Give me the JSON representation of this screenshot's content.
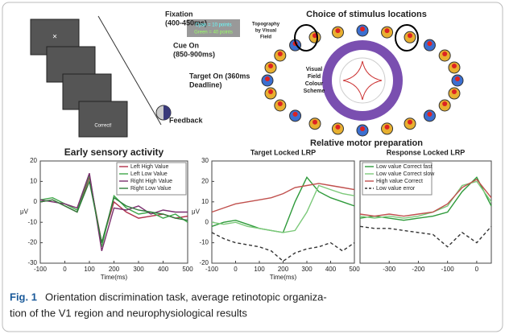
{
  "task": {
    "steps": [
      [
        "Fixation",
        "(400-450ms)"
      ],
      [
        "Cue On",
        "(850-900ms)"
      ],
      [
        "Target On (360ms",
        "Deadline)"
      ],
      [
        "Feedback"
      ]
    ],
    "key": [
      "Cyan = 10 points",
      "Green = 40 points"
    ],
    "screen_text": "Correct!"
  },
  "topography": {
    "title": "Choice of stimulus locations",
    "field_label": [
      "Topography",
      "by Visual",
      "Field"
    ],
    "scheme_label": [
      "Visual",
      "Field",
      "Colour",
      "Scheme"
    ],
    "subtitle": "Relative motor preparation"
  },
  "chart_data": [
    {
      "type": "line",
      "title": "Early sensory activity",
      "xlabel": "Time(ms)",
      "ylabel": "μV",
      "legend": "upper right",
      "x": [
        -100,
        -50,
        0,
        50,
        100,
        150,
        200,
        250,
        300,
        350,
        400,
        450,
        500
      ],
      "xlim": [
        -100,
        500
      ],
      "xticks": [
        -100,
        0,
        100,
        200,
        300,
        400,
        500
      ],
      "ylim": [
        -30,
        20
      ],
      "yticks": [
        -30,
        -20,
        -10,
        0,
        10,
        20
      ],
      "series": [
        {
          "name": "Left High Value",
          "color": "#b0304a",
          "values": [
            0,
            1,
            -2,
            -5,
            12,
            -20,
            0,
            -5,
            -8,
            -7,
            -6,
            -8,
            -7
          ]
        },
        {
          "name": "Left Low Value",
          "color": "#3fa84a",
          "values": [
            1,
            2,
            -1,
            -4,
            13,
            -22,
            3,
            -3,
            -6,
            -5,
            -8,
            -6,
            -10
          ]
        },
        {
          "name": "Right High Value",
          "color": "#7a2f6e",
          "values": [
            1,
            0,
            -1,
            -3,
            14,
            -24,
            -3,
            -4,
            -2,
            -6,
            -4,
            -5,
            -5
          ]
        },
        {
          "name": "Right Low Value",
          "color": "#2e7d3a",
          "values": [
            0,
            1,
            -2,
            -5,
            10,
            -20,
            2,
            -2,
            -4,
            -5,
            -6,
            -8,
            -9
          ]
        }
      ]
    },
    {
      "type": "line",
      "title": "Target Locked LRP",
      "xlabel": "Time(ms)",
      "ylabel": "μV",
      "x": [
        -100,
        -50,
        0,
        50,
        100,
        150,
        200,
        250,
        300,
        350,
        400,
        450,
        500
      ],
      "xlim": [
        -100,
        500
      ],
      "xticks": [
        -100,
        0,
        100,
        200,
        300,
        400,
        500
      ],
      "ylim": [
        -20,
        30
      ],
      "yticks": [
        -20,
        -10,
        0,
        10,
        20,
        30
      ],
      "series": [
        {
          "color": "#2e9a3a",
          "values": [
            -2,
            0,
            1,
            -1,
            -3,
            -4,
            -5,
            10,
            22,
            15,
            12,
            10,
            8
          ]
        },
        {
          "color": "#7cc97a",
          "values": [
            0,
            -1,
            0,
            -2,
            -3,
            -4,
            -5,
            -4,
            5,
            18,
            16,
            14,
            13
          ]
        },
        {
          "color": "#c0504d",
          "values": [
            5,
            7,
            9,
            10,
            11,
            12,
            14,
            17,
            18,
            19,
            18,
            17,
            16
          ]
        },
        {
          "color": "#333333",
          "dashed": true,
          "values": [
            -5,
            -8,
            -10,
            -11,
            -12,
            -14,
            -19,
            -15,
            -13,
            -12,
            -10,
            -14,
            -10
          ]
        }
      ]
    },
    {
      "type": "line",
      "title": "Response Locked LRP",
      "legend": "upper left",
      "x": [
        -400,
        -350,
        -300,
        -250,
        -200,
        -150,
        -100,
        -50,
        0,
        50
      ],
      "xlim": [
        -400,
        50
      ],
      "xticks": [
        -300,
        -200,
        -100,
        0
      ],
      "ylim": [
        -20,
        30
      ],
      "series": [
        {
          "name": "Low value Correct fast",
          "color": "#2e9a3a",
          "values": [
            2,
            3,
            2,
            1,
            2,
            3,
            5,
            15,
            22,
            8
          ]
        },
        {
          "name": "Low value Correct slow",
          "color": "#7cc97a",
          "values": [
            3,
            2,
            3,
            2,
            3,
            5,
            8,
            18,
            20,
            10
          ]
        },
        {
          "name": "High value Correct",
          "color": "#c0504d",
          "values": [
            4,
            3,
            4,
            3,
            4,
            5,
            9,
            17,
            21,
            12
          ]
        },
        {
          "name": "Low value error",
          "color": "#333333",
          "dashed": true,
          "values": [
            -2,
            -3,
            -3,
            -4,
            -5,
            -6,
            -12,
            -5,
            -10,
            -2
          ]
        }
      ]
    }
  ],
  "caption": {
    "label": "Fig. 1",
    "lines": [
      "Orientation discrimination task, average retinotopic organiza-",
      "tion of the V1 region and neurophysiological results"
    ]
  }
}
